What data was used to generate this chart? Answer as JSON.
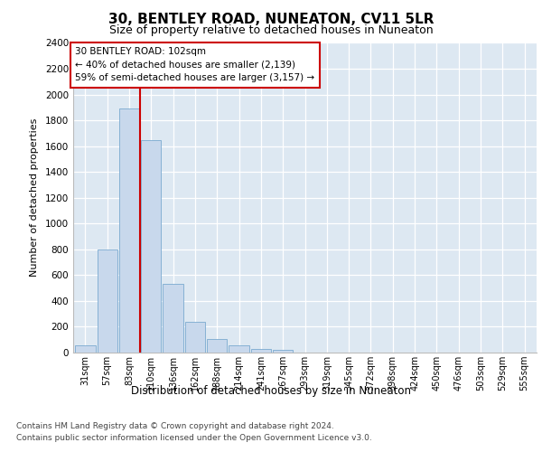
{
  "title1": "30, BENTLEY ROAD, NUNEATON, CV11 5LR",
  "title2": "Size of property relative to detached houses in Nuneaton",
  "xlabel": "Distribution of detached houses by size in Nuneaton",
  "ylabel": "Number of detached properties",
  "categories": [
    "31sqm",
    "57sqm",
    "83sqm",
    "110sqm",
    "136sqm",
    "162sqm",
    "188sqm",
    "214sqm",
    "241sqm",
    "267sqm",
    "293sqm",
    "319sqm",
    "345sqm",
    "372sqm",
    "398sqm",
    "424sqm",
    "450sqm",
    "476sqm",
    "503sqm",
    "529sqm",
    "555sqm"
  ],
  "values": [
    55,
    800,
    1890,
    1645,
    535,
    235,
    105,
    55,
    30,
    20,
    0,
    0,
    0,
    0,
    0,
    0,
    0,
    0,
    0,
    0,
    0
  ],
  "bar_color": "#c8d8ec",
  "bar_edge_color": "#7aaad0",
  "vline_color": "#cc0000",
  "vline_x_idx": 2.5,
  "annotation_title": "30 BENTLEY ROAD: 102sqm",
  "annotation_line1": "← 40% of detached houses are smaller (2,139)",
  "annotation_line2": "59% of semi-detached houses are larger (3,157) →",
  "ylim_max": 2400,
  "ytick_step": 200,
  "footnote1": "Contains HM Land Registry data © Crown copyright and database right 2024.",
  "footnote2": "Contains public sector information licensed under the Open Government Licence v3.0.",
  "fig_bg": "#ffffff",
  "axes_bg": "#dde8f2",
  "grid_color": "#ffffff",
  "title1_fontsize": 11,
  "title2_fontsize": 9,
  "ylabel_fontsize": 8,
  "xlabel_fontsize": 8.5,
  "tick_fontsize": 7.5,
  "xtick_fontsize": 7,
  "annotation_fontsize": 7.5,
  "footnote_fontsize": 6.5
}
